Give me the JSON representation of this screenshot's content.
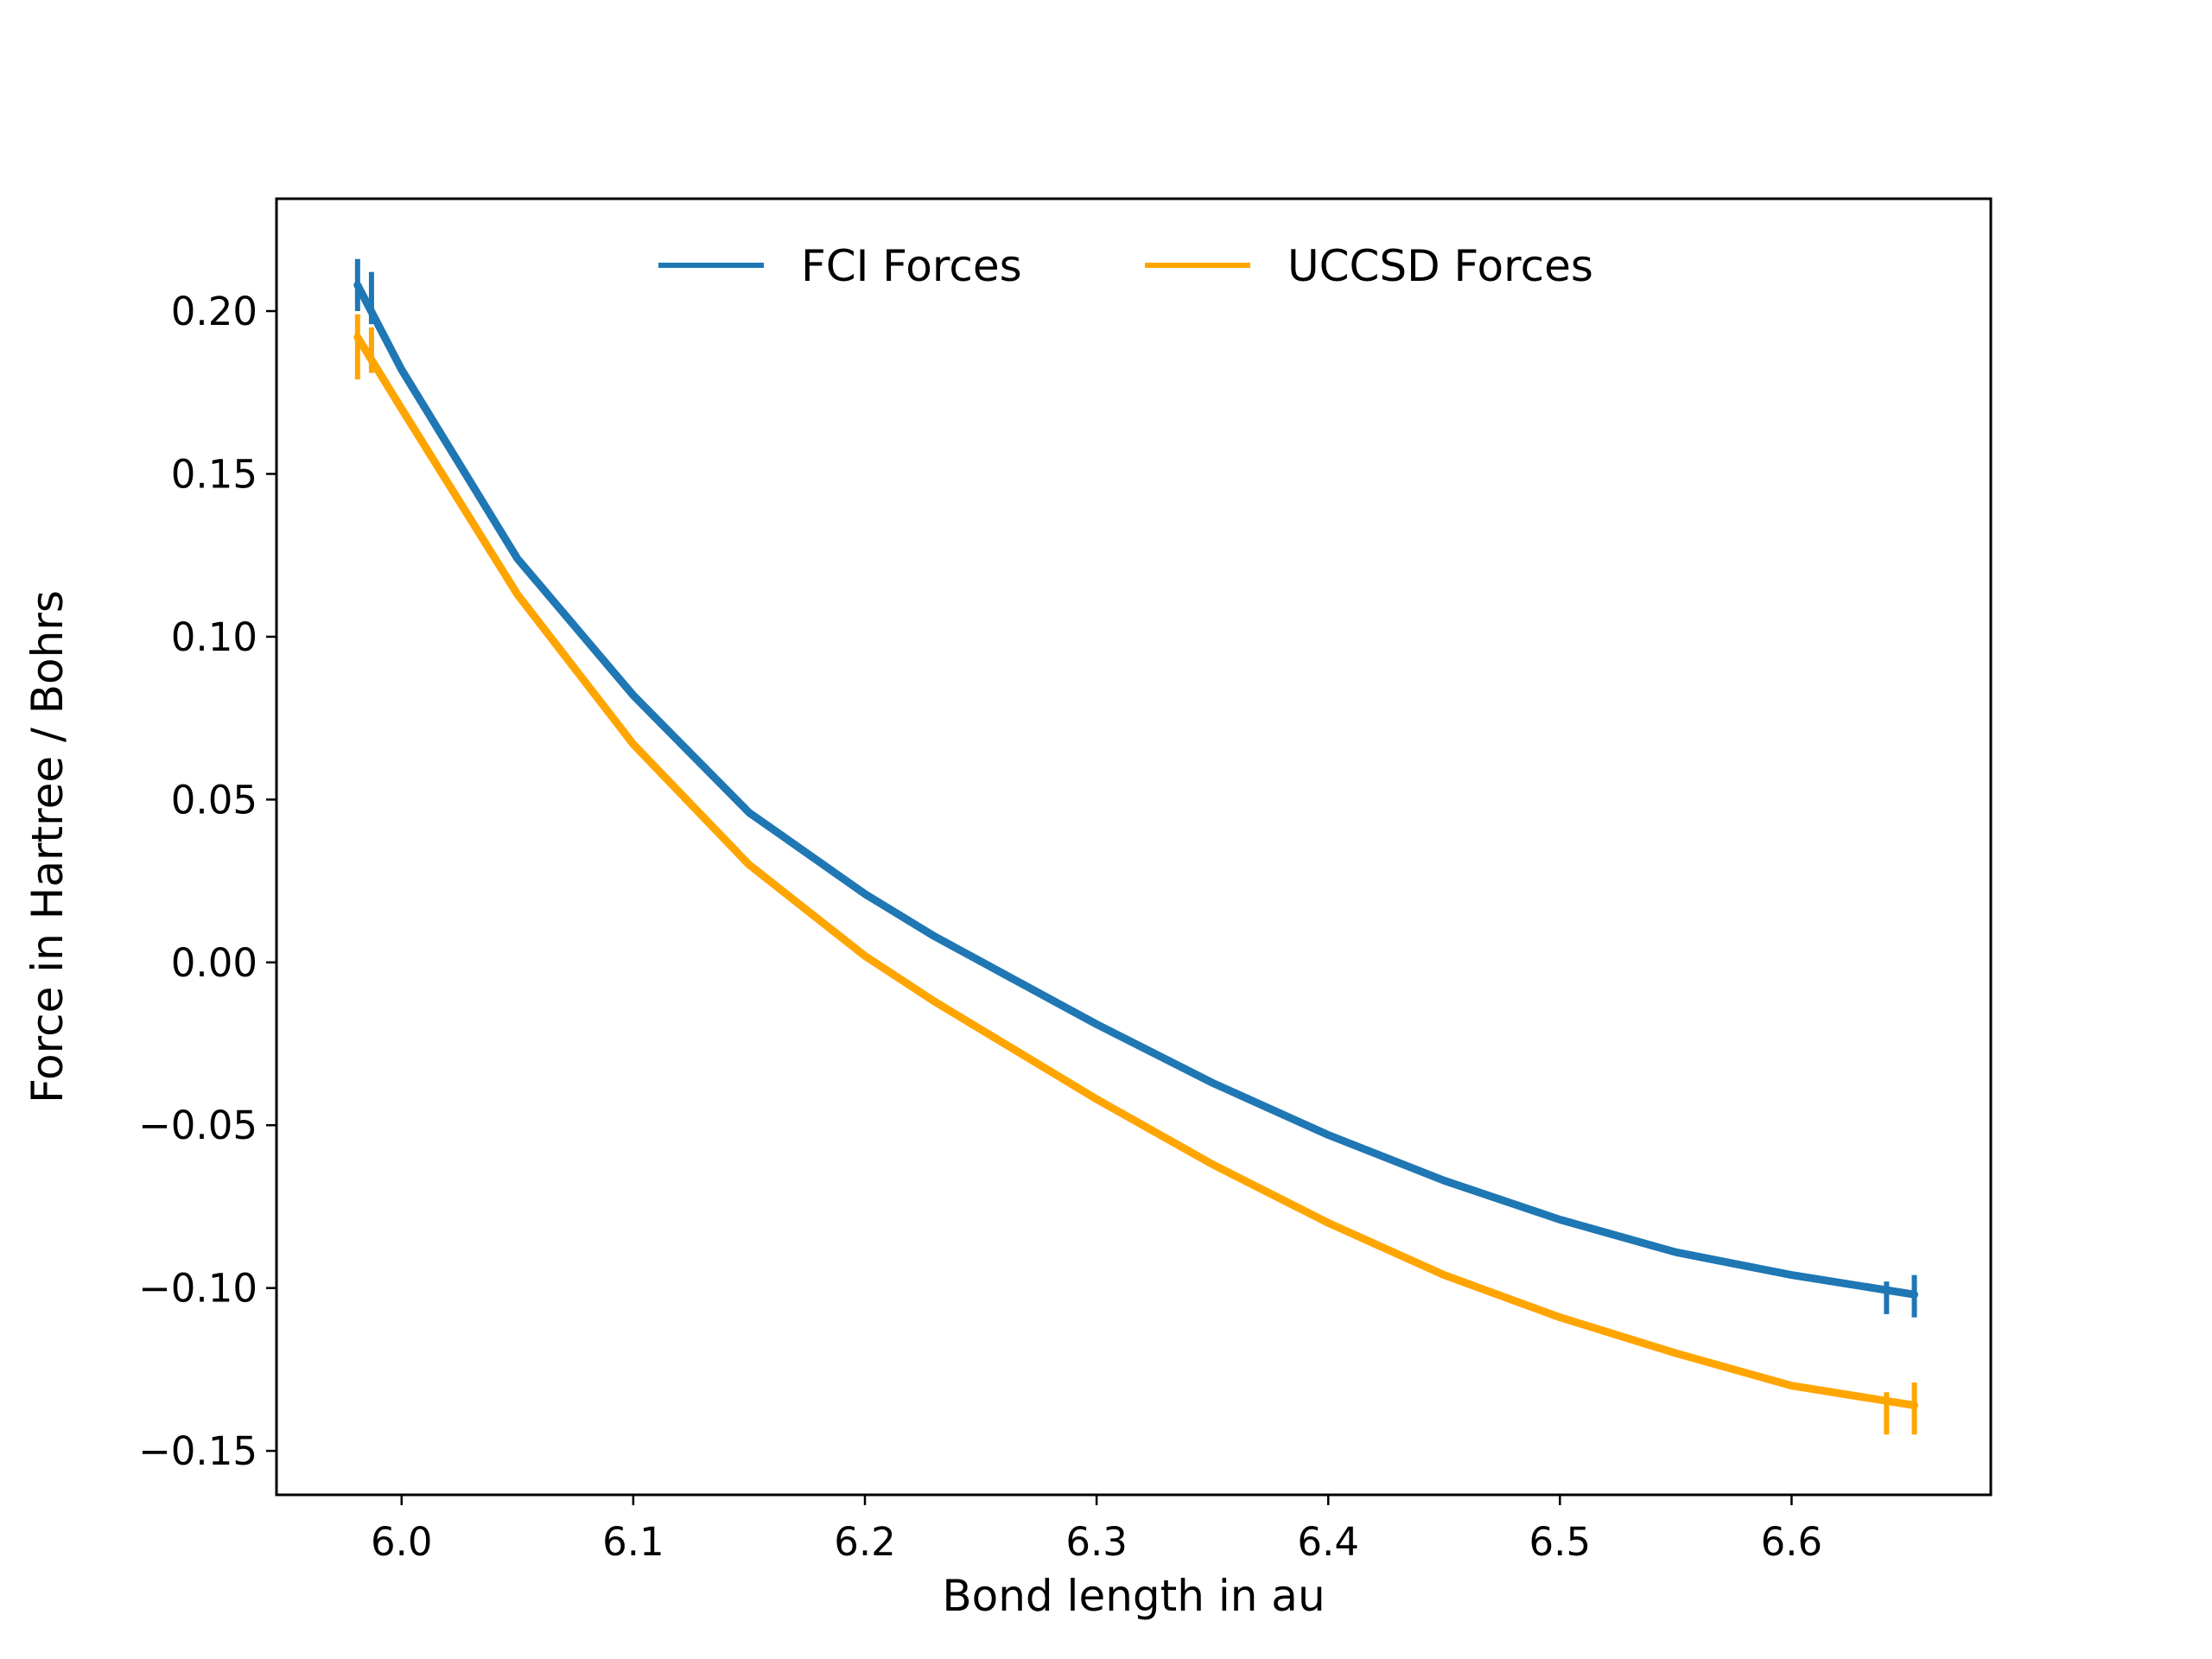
{
  "chart_data": {
    "type": "line",
    "title": "",
    "xlabel": "Bond length in au",
    "ylabel": "Force in Hartree / Bohrs",
    "xlim": [
      5.946,
      6.686
    ],
    "ylim": [
      -0.1635,
      0.2345
    ],
    "xticks": [
      6.0,
      6.1,
      6.2,
      6.3,
      6.4,
      6.5,
      6.6
    ],
    "xtick_labels": [
      "6.0",
      "6.1",
      "6.2",
      "6.3",
      "6.4",
      "6.5",
      "6.6"
    ],
    "yticks": [
      0.2,
      0.15,
      0.1,
      0.05,
      0.0,
      -0.05,
      -0.1,
      -0.15
    ],
    "ytick_labels": [
      "0.20",
      "0.15",
      "0.10",
      "0.05",
      "0.00",
      "−0.05",
      "−0.10",
      "−0.15"
    ],
    "grid": false,
    "legend": {
      "position": "upper-center",
      "columns": 2
    },
    "series": [
      {
        "name": "FCI Forces",
        "color": "#1f77b4",
        "x": [
          5.981,
          6.0,
          6.05,
          6.1,
          6.15,
          6.2,
          6.23,
          6.3,
          6.35,
          6.4,
          6.45,
          6.5,
          6.55,
          6.6,
          6.653
        ],
        "y": [
          0.208,
          0.182,
          0.124,
          0.082,
          0.046,
          0.021,
          0.008,
          -0.019,
          -0.037,
          -0.053,
          -0.067,
          -0.079,
          -0.089,
          -0.096,
          -0.102
        ],
        "markers": [
          {
            "x": 5.981,
            "y1": 0.2,
            "y2": 0.216
          },
          {
            "x": 5.987,
            "y1": 0.196,
            "y2": 0.212
          },
          {
            "x": 6.641,
            "y1": -0.108,
            "y2": -0.098
          },
          {
            "x": 6.653,
            "y1": -0.109,
            "y2": -0.096
          }
        ]
      },
      {
        "name": "UCCSD Forces",
        "color": "#ffa500",
        "x": [
          5.981,
          6.0,
          6.05,
          6.1,
          6.15,
          6.2,
          6.23,
          6.3,
          6.35,
          6.4,
          6.45,
          6.5,
          6.55,
          6.6,
          6.653
        ],
        "y": [
          0.192,
          0.17,
          0.113,
          0.067,
          0.03,
          0.002,
          -0.012,
          -0.042,
          -0.062,
          -0.08,
          -0.096,
          -0.109,
          -0.12,
          -0.13,
          -0.136
        ],
        "markers": [
          {
            "x": 5.981,
            "y1": 0.179,
            "y2": 0.199
          },
          {
            "x": 5.987,
            "y1": 0.181,
            "y2": 0.195
          },
          {
            "x": 6.641,
            "y1": -0.145,
            "y2": -0.132
          },
          {
            "x": 6.653,
            "y1": -0.145,
            "y2": -0.129
          }
        ]
      }
    ]
  }
}
